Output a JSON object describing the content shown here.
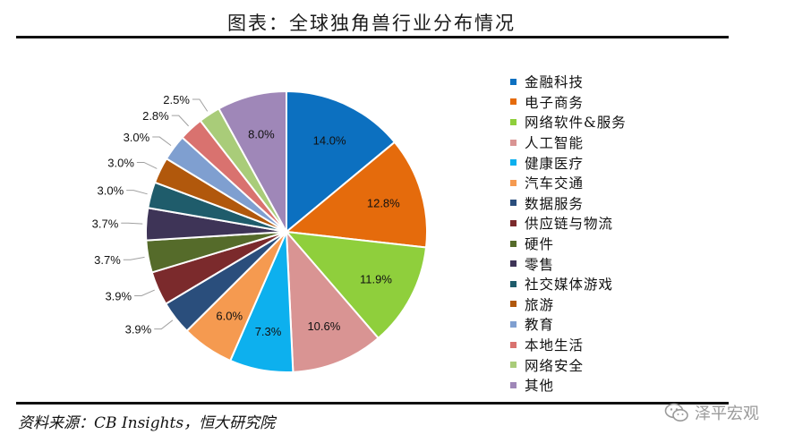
{
  "title": "图表：全球独角兽行业分布情况",
  "source": "资料来源：CB Insights，恒大研究院",
  "watermark": {
    "text": "泽平宏观",
    "icon": "wechat-icon"
  },
  "chart_data": {
    "type": "pie",
    "title": "",
    "categories": [
      "金融科技",
      "电子商务",
      "网络软件&服务",
      "人工智能",
      "健康医疗",
      "汽车交通",
      "数据服务",
      "供应链与物流",
      "硬件",
      "零售",
      "社交媒体游戏",
      "旅游",
      "教育",
      "本地生活",
      "网络安全",
      "其他"
    ],
    "values": [
      14.0,
      12.8,
      11.9,
      10.6,
      7.3,
      6.0,
      3.9,
      3.9,
      3.7,
      3.7,
      3.0,
      3.0,
      3.0,
      2.8,
      2.5,
      8.0
    ],
    "value_labels": [
      "14.0%",
      "12.8%",
      "11.9%",
      "10.6%",
      "7.3%",
      "6.0%",
      "3.9%",
      "3.9%",
      "3.7%",
      "3.7%",
      "3.0%",
      "3.0%",
      "3.0%",
      "2.8%",
      "2.5%",
      "8.0%"
    ],
    "colors": [
      "#0C70C0",
      "#E56B0C",
      "#8FCF3C",
      "#D99493",
      "#0DB0EE",
      "#F59A50",
      "#2A4E7C",
      "#7B2A2C",
      "#556B2A",
      "#3E3457",
      "#1F5C6B",
      "#B1580C",
      "#7F9FD0",
      "#D9726F",
      "#A9CC79",
      "#9F87B8"
    ],
    "legend_position": "right"
  }
}
